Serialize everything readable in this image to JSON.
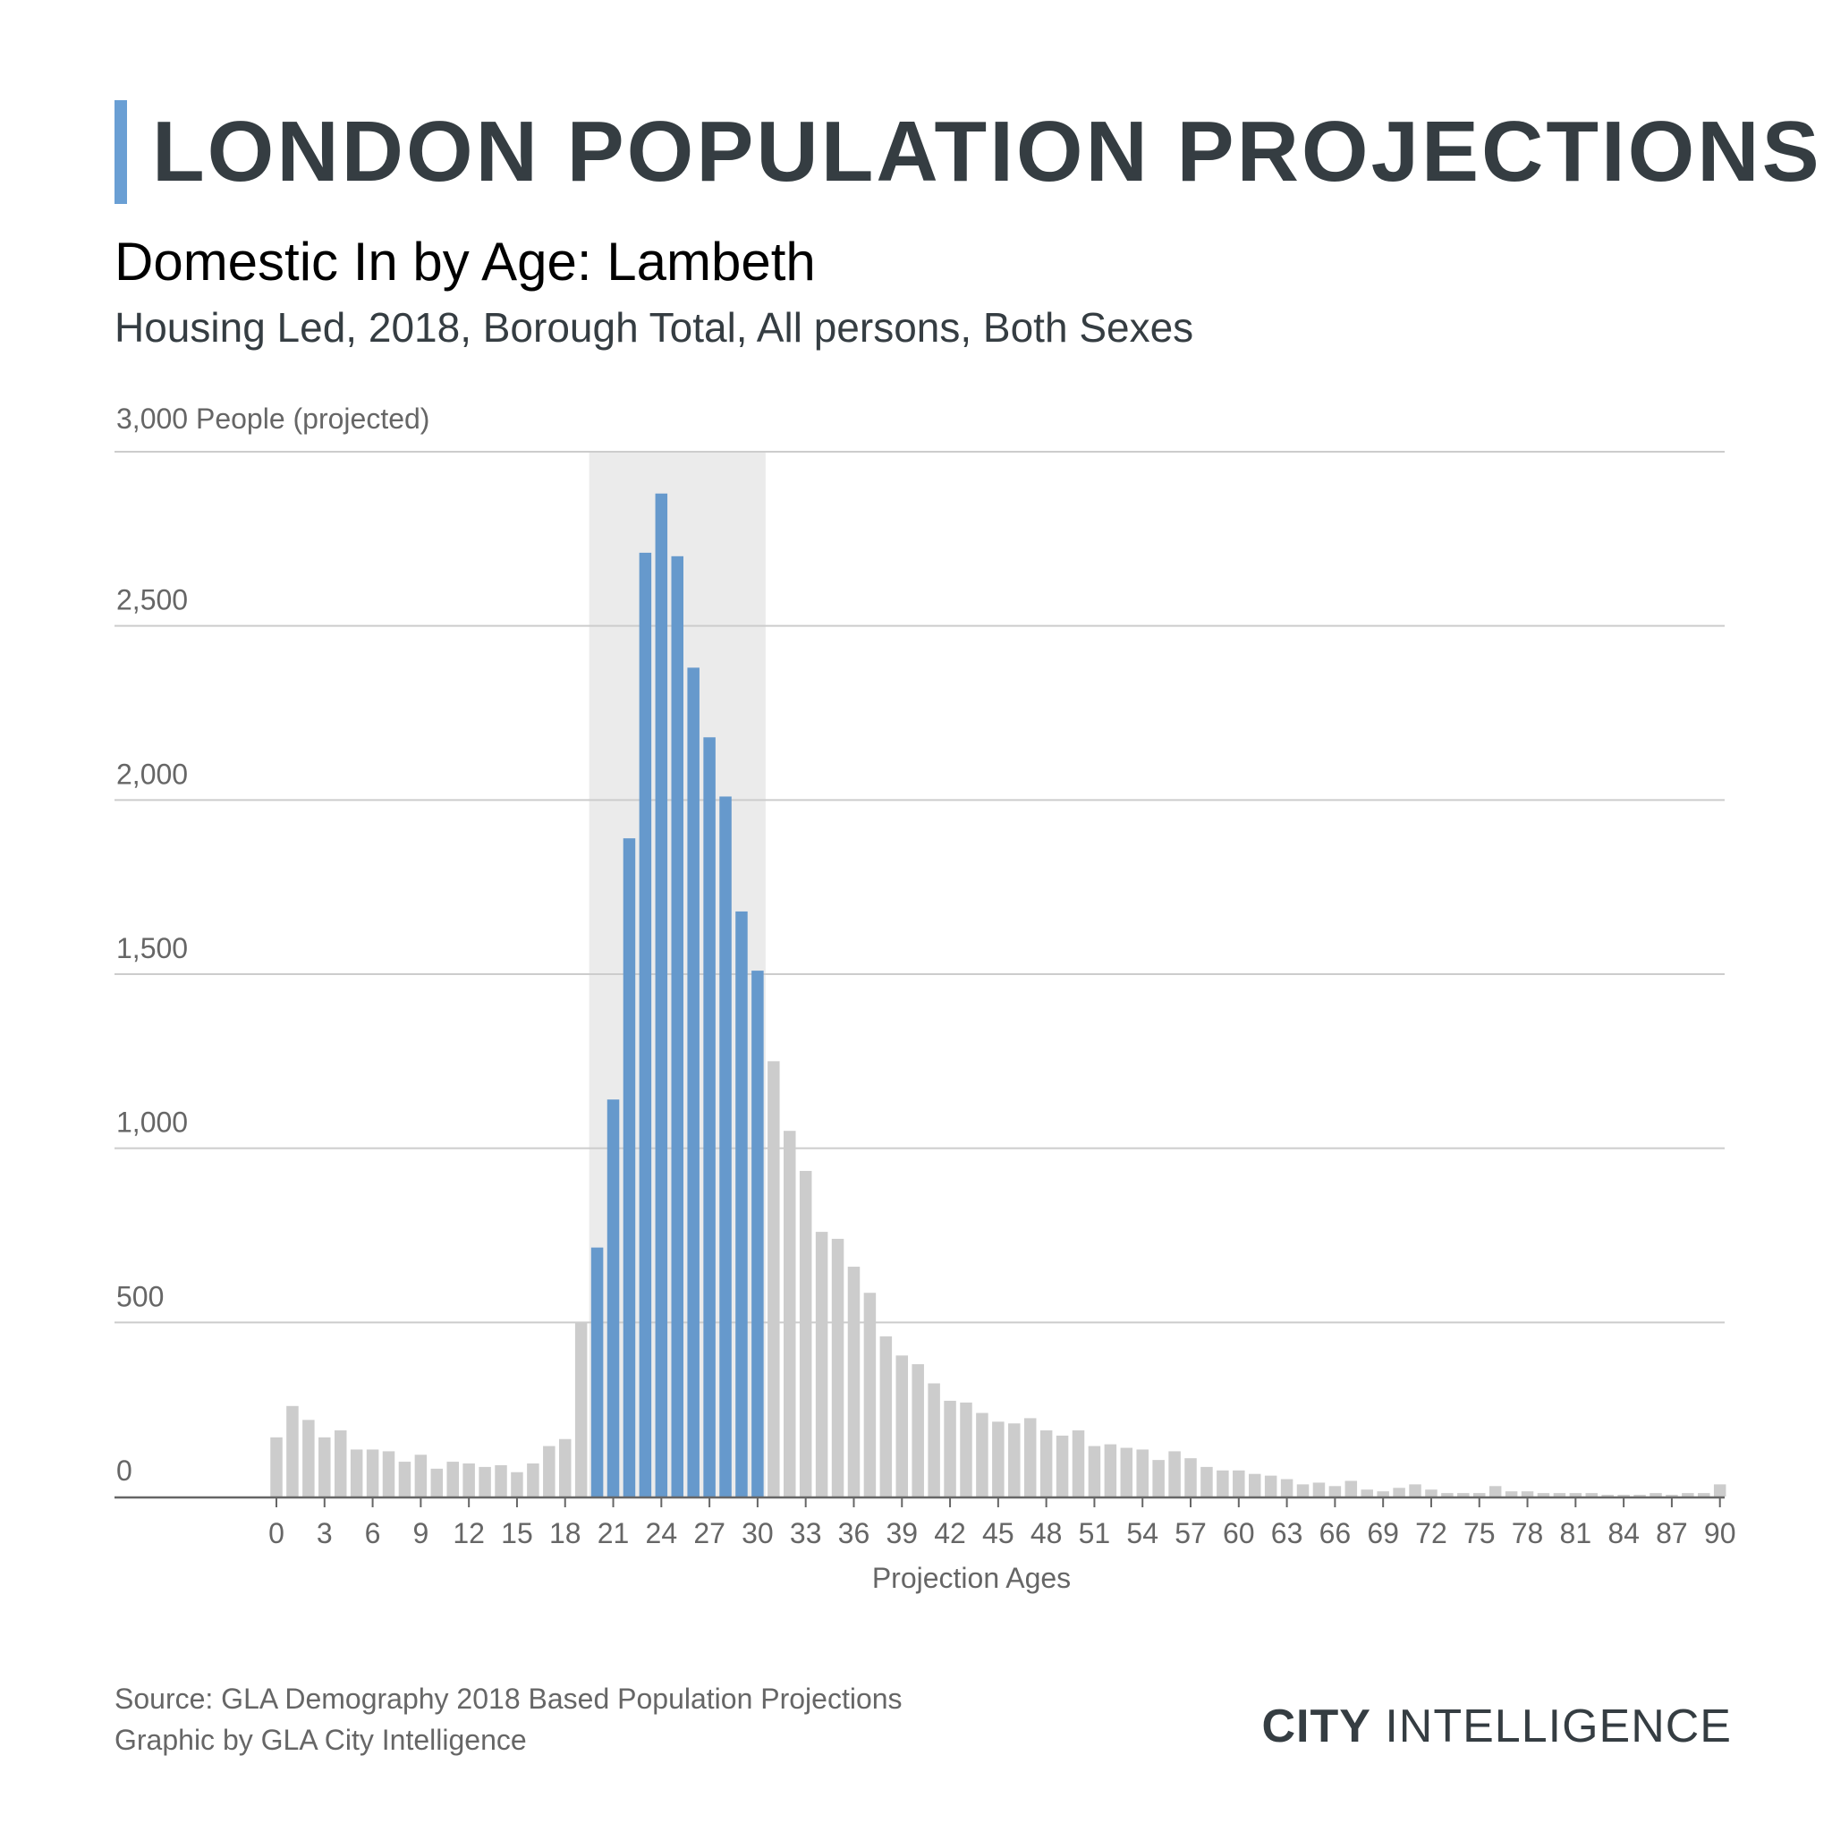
{
  "header": {
    "title": "LONDON POPULATION PROJECTIONS",
    "subtitle": "Domestic In by Age: Lambeth",
    "subsubtitle": "Housing Led, 2018, Borough Total, All persons, Both Sexes"
  },
  "colors": {
    "accent": "#6a9fd4",
    "bar_default": "#cccccc",
    "bar_highlight": "#6699cc",
    "highlight_band": "#ebebeb",
    "gridline": "#cccccc",
    "text_dark": "#353d42",
    "text_muted": "#666666"
  },
  "chart_data": {
    "type": "bar",
    "ylabel": "3,000 People (projected)",
    "xlabel": "Projection Ages",
    "ylim": [
      0,
      3000
    ],
    "yticks": [
      {
        "value": 0,
        "label": "0"
      },
      {
        "value": 500,
        "label": "500"
      },
      {
        "value": 1000,
        "label": "1,000"
      },
      {
        "value": 1500,
        "label": "1,500"
      },
      {
        "value": 2000,
        "label": "2,000"
      },
      {
        "value": 2500,
        "label": "2,500"
      }
    ],
    "xtick_labels": [
      "0",
      "3",
      "6",
      "9",
      "12",
      "15",
      "18",
      "21",
      "24",
      "27",
      "30",
      "33",
      "36",
      "39",
      "42",
      "45",
      "48",
      "51",
      "54",
      "57",
      "60",
      "63",
      "66",
      "69",
      "72",
      "75",
      "78",
      "81",
      "84",
      "87",
      "90"
    ],
    "highlight_range": [
      20,
      30
    ],
    "categories": [
      0,
      1,
      2,
      3,
      4,
      5,
      6,
      7,
      8,
      9,
      10,
      11,
      12,
      13,
      14,
      15,
      16,
      17,
      18,
      19,
      20,
      21,
      22,
      23,
      24,
      25,
      26,
      27,
      28,
      29,
      30,
      31,
      32,
      33,
      34,
      35,
      36,
      37,
      38,
      39,
      40,
      41,
      42,
      43,
      44,
      45,
      46,
      47,
      48,
      49,
      50,
      51,
      52,
      53,
      54,
      55,
      56,
      57,
      58,
      59,
      60,
      61,
      62,
      63,
      64,
      65,
      66,
      67,
      68,
      69,
      70,
      71,
      72,
      73,
      74,
      75,
      76,
      77,
      78,
      79,
      80,
      81,
      82,
      83,
      84,
      85,
      86,
      87,
      88,
      89,
      90
    ],
    "values": [
      170,
      260,
      220,
      170,
      190,
      135,
      135,
      130,
      100,
      120,
      80,
      100,
      95,
      85,
      90,
      70,
      95,
      145,
      165,
      500,
      715,
      1140,
      1890,
      2710,
      2880,
      2700,
      2380,
      2180,
      2010,
      1680,
      1510,
      1250,
      1050,
      935,
      760,
      740,
      660,
      585,
      460,
      405,
      380,
      325,
      275,
      270,
      240,
      215,
      210,
      225,
      190,
      175,
      190,
      145,
      150,
      140,
      135,
      105,
      130,
      110,
      85,
      75,
      75,
      65,
      60,
      50,
      35,
      40,
      30,
      45,
      20,
      15,
      25,
      35,
      20,
      10,
      10,
      10,
      30,
      15,
      15,
      10,
      10,
      10,
      10,
      5,
      5,
      5,
      10,
      5,
      10,
      10,
      35
    ]
  },
  "footer": {
    "source_line1": "Source: GLA Demography 2018 Based Population Projections",
    "source_line2": "Graphic by GLA City Intelligence",
    "logo_bold": "CITY",
    "logo_light": " INTELLIGENCE"
  }
}
